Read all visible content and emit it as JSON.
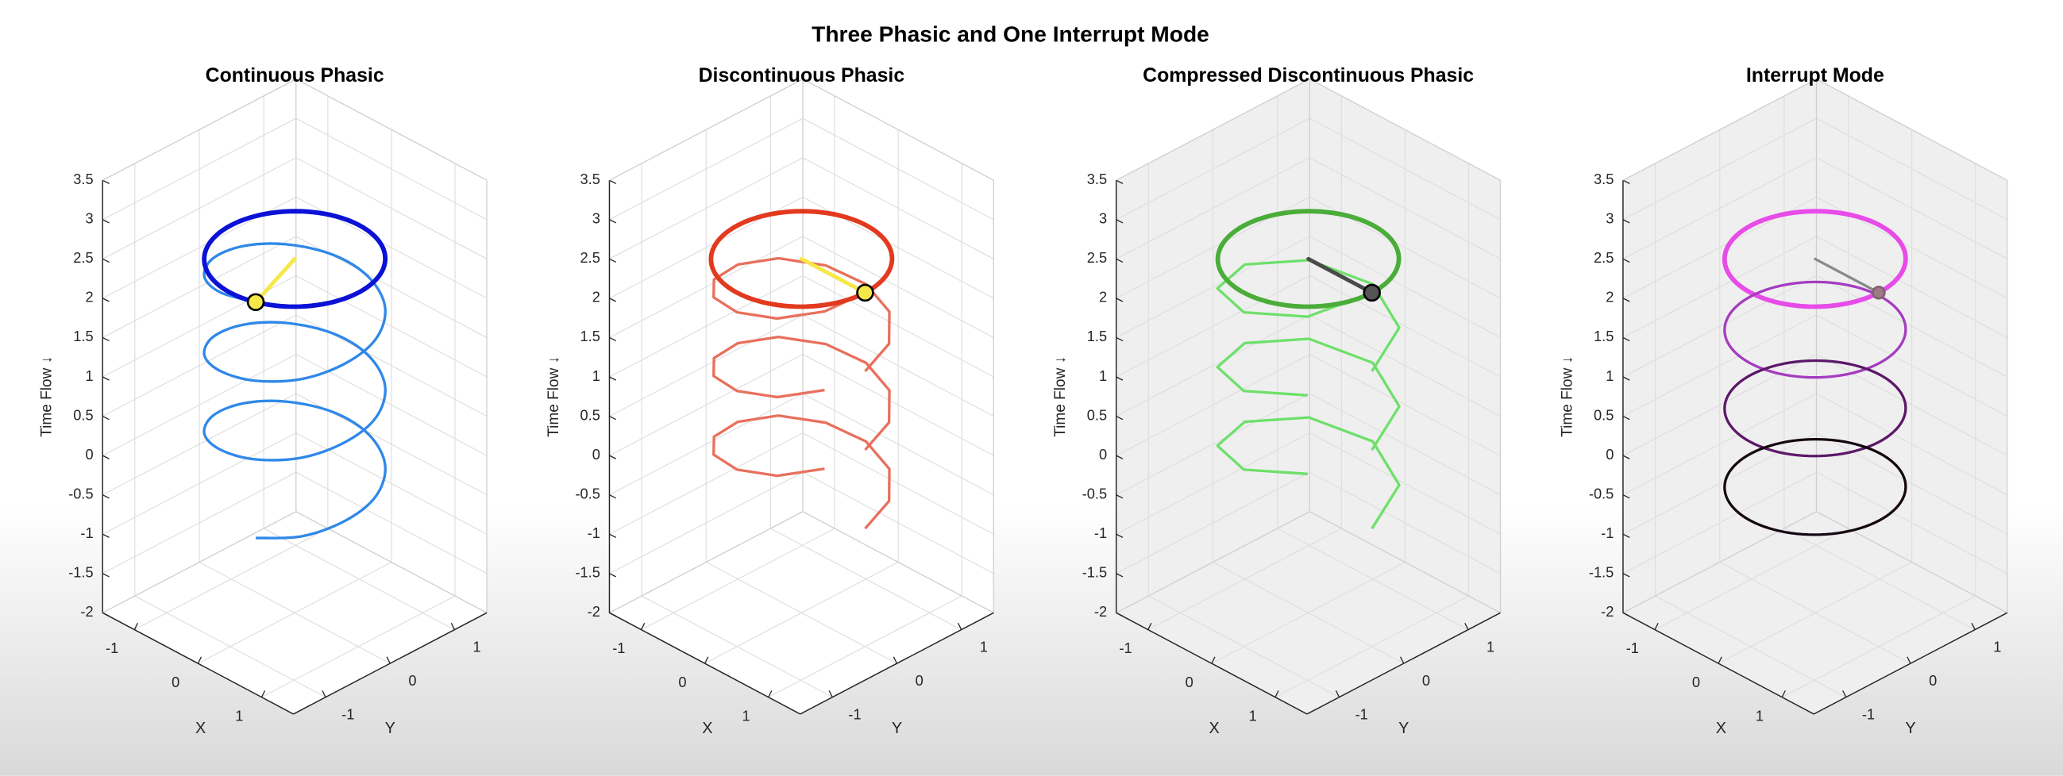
{
  "title": "Three Phasic and One Interrupt Mode",
  "chart_data": [
    {
      "type": "line3d",
      "title": "Continuous Phasic",
      "xlabel": "X",
      "ylabel": "Y",
      "zlabel": "Time Flow ↓",
      "xlim": [
        -1.5,
        1.5
      ],
      "ylim": [
        -1.5,
        1.5
      ],
      "zlim": [
        -2,
        3.5
      ],
      "xticks": [
        -1,
        0,
        1
      ],
      "yticks": [
        -1,
        0,
        1
      ],
      "zticks": [
        -2,
        -1.5,
        -1,
        -0.5,
        0,
        0.5,
        1,
        1.5,
        2,
        2.5,
        3,
        3.5
      ],
      "grid": true,
      "pane_color": "#ffffff",
      "series": [
        {
          "color": "#2f88e8",
          "width": 2,
          "smooth": true,
          "x": [
            0.34,
            0.77,
            0.98,
            0.94,
            0.64,
            0.17,
            -0.34,
            -0.77,
            -0.98,
            -0.94,
            -0.64,
            -0.17,
            0.34,
            0.77,
            0.98,
            0.94,
            0.64,
            0.17,
            -0.34,
            -0.77,
            -0.98,
            -0.94,
            -0.64,
            -0.17,
            0.34,
            0.77,
            0.98,
            0.94,
            0.64,
            0.17,
            -0.34,
            -0.77,
            -0.98,
            -0.94,
            -0.64,
            -0.17,
            0.34
          ],
          "y": [
            -0.94,
            -0.64,
            -0.17,
            0.34,
            0.77,
            0.98,
            0.94,
            0.64,
            0.17,
            -0.34,
            -0.77,
            -0.98,
            -0.94,
            -0.64,
            -0.17,
            0.34,
            0.77,
            0.98,
            0.94,
            0.64,
            0.17,
            -0.34,
            -0.77,
            -0.98,
            -0.94,
            -0.64,
            -0.17,
            0.34,
            0.77,
            0.98,
            0.94,
            0.64,
            0.17,
            -0.34,
            -0.77,
            -0.98,
            -0.94
          ],
          "z": [
            -0.5,
            -0.42,
            -0.33,
            -0.25,
            -0.17,
            -0.08,
            0,
            0.08,
            0.17,
            0.25,
            0.33,
            0.42,
            0.5,
            0.58,
            0.67,
            0.75,
            0.83,
            0.92,
            1,
            1.08,
            1.17,
            1.25,
            1.33,
            1.42,
            1.5,
            1.58,
            1.67,
            1.75,
            1.83,
            1.92,
            2,
            2.08,
            2.17,
            2.25,
            2.33,
            2.42,
            2.5
          ]
        }
      ],
      "rings": [
        {
          "color": "#0b12d6",
          "width": 3.5,
          "z": 2.5,
          "radius": 1
        }
      ],
      "hand": {
        "color": "#f7e84a",
        "width": 3,
        "marker_color": "#f7e84a",
        "marker_edge": "#000000",
        "marker_size": 6,
        "x": [
          0,
          0.34
        ],
        "y": [
          0,
          -0.94
        ],
        "z": [
          2.5,
          2.5
        ]
      }
    },
    {
      "type": "line3d",
      "title": "Discontinuous Phasic",
      "xlabel": "X",
      "ylabel": "Y",
      "zlabel": "Time Flow ↓",
      "xlim": [
        -1.5,
        1.5
      ],
      "ylim": [
        -1.5,
        1.5
      ],
      "zlim": [
        -2,
        3.5
      ],
      "xticks": [
        -1,
        0,
        1
      ],
      "yticks": [
        -1,
        0,
        1
      ],
      "zticks": [
        -2,
        -1.5,
        -1,
        -0.5,
        0,
        0.5,
        1,
        1.5,
        2,
        2.5,
        3,
        3.5
      ],
      "grid": true,
      "pane_color": "#ffffff",
      "series": [
        {
          "color": "#e8705c",
          "width": 2,
          "smooth": false,
          "x": [
            1,
            0.87,
            0.5,
            0,
            -0.5,
            -0.87,
            -1,
            -0.87,
            -0.5,
            0,
            0.5,
            0.87,
            null,
            1,
            0.87,
            0.5,
            0,
            -0.5,
            -0.87,
            -1,
            -0.87,
            -0.5,
            0,
            0.5,
            0.87,
            null,
            1,
            0.87,
            0.5,
            0,
            -0.5,
            -0.87,
            -1,
            -0.87,
            -0.5,
            0,
            0.5,
            0.87,
            1
          ],
          "y": [
            0,
            0.5,
            0.87,
            1,
            0.87,
            0.5,
            0,
            -0.5,
            -0.87,
            -1,
            -0.87,
            -0.5,
            null,
            0,
            0.5,
            0.87,
            1,
            0.87,
            0.5,
            0,
            -0.5,
            -0.87,
            -1,
            -0.87,
            -0.5,
            null,
            0,
            0.5,
            0.87,
            1,
            0.87,
            0.5,
            0,
            -0.5,
            -0.87,
            -1,
            -0.87,
            -0.5,
            0
          ],
          "z": [
            -0.5,
            -0.42,
            -0.33,
            -0.25,
            -0.17,
            -0.08,
            0,
            0.08,
            0.17,
            0.25,
            0.33,
            0.42,
            null,
            0.5,
            0.58,
            0.67,
            0.75,
            0.83,
            0.92,
            1,
            1.08,
            1.17,
            1.25,
            1.33,
            1.42,
            null,
            1.5,
            1.58,
            1.67,
            1.75,
            1.83,
            1.92,
            2,
            2.08,
            2.17,
            2.25,
            2.33,
            2.42,
            2.5
          ]
        }
      ],
      "rings": [
        {
          "color": "#e23a1f",
          "width": 3.5,
          "z": 2.5,
          "radius": 1
        }
      ],
      "hand": {
        "color": "#f7e84a",
        "width": 3,
        "marker_color": "#f7e84a",
        "marker_edge": "#000000",
        "marker_size": 6,
        "x": [
          0,
          1
        ],
        "y": [
          0,
          0
        ],
        "z": [
          2.5,
          2.5
        ]
      }
    },
    {
      "type": "line3d",
      "title": "Compressed Discontinuous Phasic",
      "xlabel": "X",
      "ylabel": "Y",
      "zlabel": "Time Flow ↓",
      "xlim": [
        -1.5,
        1.5
      ],
      "ylim": [
        -1.5,
        1.5
      ],
      "zlim": [
        -2,
        3.5
      ],
      "xticks": [
        -1,
        0,
        1
      ],
      "yticks": [
        -1,
        0,
        1
      ],
      "zticks": [
        -2,
        -1.5,
        -1,
        -0.5,
        0,
        0.5,
        1,
        1.5,
        2,
        2.5,
        3,
        3.5
      ],
      "grid": true,
      "pane_color": "#efefef",
      "series": [
        {
          "color": "#6ee06a",
          "width": 2,
          "smooth": false,
          "x": [
            1,
            0.71,
            0,
            -0.71,
            -1,
            -0.71,
            0,
            0.71,
            null,
            1,
            0.71,
            0,
            -0.71,
            -1,
            -0.71,
            0,
            0.71,
            null,
            1,
            0.71,
            0,
            -0.71,
            -1,
            -0.71,
            0,
            0.71,
            1
          ],
          "y": [
            0,
            0.71,
            1,
            0.71,
            0,
            -0.71,
            -1,
            -0.71,
            null,
            0,
            0.71,
            1,
            0.71,
            0,
            -0.71,
            -1,
            -0.71,
            null,
            0,
            0.71,
            1,
            0.71,
            0,
            -0.71,
            -1,
            -0.71,
            0
          ],
          "z": [
            -0.5,
            -0.375,
            -0.25,
            -0.125,
            0,
            0.125,
            0.25,
            0.375,
            null,
            0.5,
            0.625,
            0.75,
            0.875,
            1,
            1.125,
            1.25,
            1.375,
            null,
            1.5,
            1.625,
            1.75,
            1.875,
            2,
            2.125,
            2.25,
            2.375,
            2.5
          ]
        }
      ],
      "rings": [
        {
          "color": "#4aad3a",
          "width": 3.5,
          "z": 2.5,
          "radius": 1
        }
      ],
      "hand": {
        "color": "#4a4a4a",
        "width": 3,
        "marker_color": "#555555",
        "marker_edge": "#000000",
        "marker_size": 6,
        "x": [
          0,
          1
        ],
        "y": [
          0,
          0
        ],
        "z": [
          2.5,
          2.5
        ]
      }
    },
    {
      "type": "line3d",
      "title": "Interrupt Mode",
      "xlabel": "X",
      "ylabel": "Y",
      "zlabel": "Time Flow ↓",
      "xlim": [
        -1.5,
        1.5
      ],
      "ylim": [
        -1.5,
        1.5
      ],
      "zlim": [
        -2,
        3.5
      ],
      "xticks": [
        -1,
        0,
        1
      ],
      "yticks": [
        -1,
        0,
        1
      ],
      "zticks": [
        -2,
        -1.5,
        -1,
        -0.5,
        0,
        0.5,
        1,
        1.5,
        2,
        2.5,
        3,
        3.5
      ],
      "grid": true,
      "pane_color": "#efefef",
      "series": [],
      "rings": [
        {
          "color": "#e74ce8",
          "width": 3.5,
          "z": 2.5,
          "radius": 1
        },
        {
          "color": "#a53cc0",
          "width": 2,
          "z": 1.6,
          "radius": 1
        },
        {
          "color": "#5c1868",
          "width": 2,
          "z": 0.6,
          "radius": 1
        },
        {
          "color": "#150812",
          "width": 2,
          "z": -0.4,
          "radius": 1
        }
      ],
      "hand": {
        "color": "#8a8a8a",
        "width": 2,
        "marker_color": "#a07888",
        "marker_edge": "#806070",
        "marker_size": 4.5,
        "x": [
          0,
          1
        ],
        "y": [
          0,
          0
        ],
        "z": [
          2.5,
          2.5
        ]
      }
    }
  ]
}
